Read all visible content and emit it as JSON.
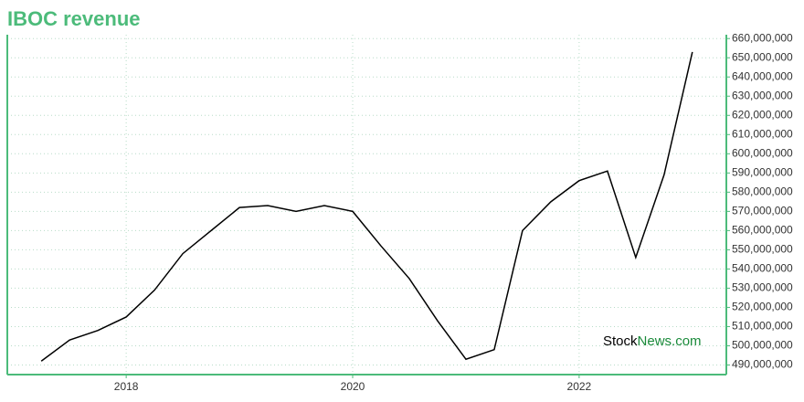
{
  "chart_data": {
    "type": "line",
    "title": "IBOC revenue",
    "watermark_main": "Stock",
    "watermark_suffix": "News.com",
    "x": [
      2017.25,
      2017.5,
      2017.75,
      2018.0,
      2018.25,
      2018.5,
      2018.75,
      2019.0,
      2019.25,
      2019.5,
      2019.75,
      2020.0,
      2020.25,
      2020.5,
      2020.75,
      2021.0,
      2021.25,
      2021.5,
      2021.75,
      2022.0,
      2022.25,
      2022.5,
      2022.75,
      2023.0
    ],
    "series": [
      {
        "name": "IBOC revenue",
        "color": "#000000",
        "values": [
          492000000,
          503000000,
          508000000,
          515000000,
          529000000,
          548000000,
          560000000,
          572000000,
          573000000,
          570000000,
          573000000,
          570000000,
          552000000,
          535000000,
          513000000,
          493000000,
          498000000,
          560000000,
          575000000,
          586000000,
          591000000,
          546000000,
          589000000,
          653000000
        ]
      }
    ],
    "xlim": [
      2016.95,
      2023.3
    ],
    "xticks": [
      2018,
      2020,
      2022
    ],
    "ylim": [
      485000000,
      662000000
    ],
    "yticks": [
      {
        "value": 490000000,
        "label": "490,000,000"
      },
      {
        "value": 500000000,
        "label": "500,000,000"
      },
      {
        "value": 510000000,
        "label": "510,000,000"
      },
      {
        "value": 520000000,
        "label": "520,000,000"
      },
      {
        "value": 530000000,
        "label": "530,000,000"
      },
      {
        "value": 540000000,
        "label": "540,000,000"
      },
      {
        "value": 550000000,
        "label": "550,000,000"
      },
      {
        "value": 560000000,
        "label": "560,000,000"
      },
      {
        "value": 570000000,
        "label": "570,000,000"
      },
      {
        "value": 580000000,
        "label": "580,000,000"
      },
      {
        "value": 590000000,
        "label": "590,000,000"
      },
      {
        "value": 600000000,
        "label": "600,000,000"
      },
      {
        "value": 610000000,
        "label": "610,000,000"
      },
      {
        "value": 620000000,
        "label": "620,000,000"
      },
      {
        "value": 630000000,
        "label": "630,000,000"
      },
      {
        "value": 640000000,
        "label": "640,000,000"
      },
      {
        "value": 650000000,
        "label": "650,000,000"
      },
      {
        "value": 660000000,
        "label": "660,000,000"
      }
    ],
    "grid": true,
    "axis_color": "#4cbb7a"
  }
}
